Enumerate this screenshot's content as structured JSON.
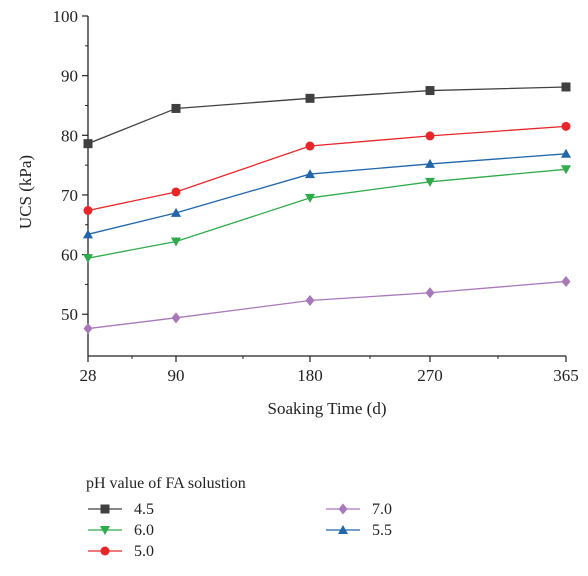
{
  "chart_data": {
    "type": "line",
    "xlabel": "Soaking Time (d)",
    "ylabel": "UCS (kPa)",
    "x": [
      28,
      90,
      180,
      270,
      365
    ],
    "x_tick_labels": [
      "28",
      "90",
      "180",
      "270",
      "365"
    ],
    "ylim": [
      43,
      100
    ],
    "y_ticks": [
      50,
      60,
      70,
      80,
      90,
      100
    ],
    "grid": false,
    "legend_title": "pH value of FA solustion",
    "legend_position": "bottom",
    "series": [
      {
        "name": "4.5",
        "color": "#404040",
        "marker": "square",
        "values": [
          78.6,
          84.5,
          86.2,
          87.5,
          88.1
        ]
      },
      {
        "name": "6.0",
        "color": "#2eab4a",
        "marker": "triangle-down",
        "values": [
          59.4,
          62.2,
          69.5,
          72.2,
          74.3
        ]
      },
      {
        "name": "5.0",
        "color": "#e8262a",
        "marker": "circle",
        "values": [
          67.4,
          70.5,
          78.2,
          79.9,
          81.5
        ]
      },
      {
        "name": "7.0",
        "color": "#a878bb",
        "marker": "diamond",
        "values": [
          47.6,
          49.4,
          52.3,
          53.6,
          55.5
        ]
      },
      {
        "name": "5.5",
        "color": "#2166ac",
        "marker": "triangle-up",
        "values": [
          63.4,
          67.0,
          73.5,
          75.2,
          76.9
        ]
      }
    ]
  }
}
